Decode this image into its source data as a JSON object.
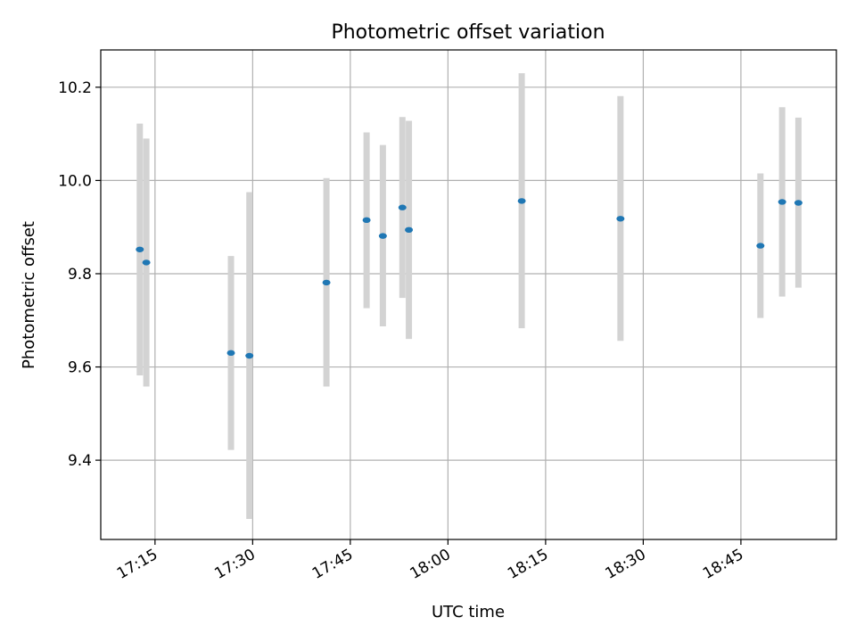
{
  "chart_data": {
    "type": "scatter",
    "title": "Photometric offset variation",
    "xlabel": "UTC time",
    "ylabel": "Photometric offset",
    "grid": true,
    "xlim": [
      "17:06:40",
      "18:59:40"
    ],
    "ylim": [
      9.23,
      10.28
    ],
    "xticks": [
      "17:15",
      "17:30",
      "17:45",
      "18:00",
      "18:15",
      "18:30",
      "18:45"
    ],
    "yticks": [
      9.4,
      9.6,
      9.8,
      10.0,
      10.2
    ],
    "ytick_labels": [
      "9.4",
      "9.6",
      "9.8",
      "10.0",
      "10.2"
    ],
    "marker_color": "#1f77b4",
    "errorbar_color": "#d3d3d3",
    "points": [
      {
        "x": "17:12:40",
        "y": 9.852,
        "yerr_low": 9.582,
        "yerr_high": 10.122
      },
      {
        "x": "17:13:40",
        "y": 9.824,
        "yerr_low": 9.558,
        "yerr_high": 10.09
      },
      {
        "x": "17:26:40",
        "y": 9.63,
        "yerr_low": 9.422,
        "yerr_high": 9.838
      },
      {
        "x": "17:29:30",
        "y": 9.624,
        "yerr_low": 9.274,
        "yerr_high": 9.975
      },
      {
        "x": "17:41:20",
        "y": 9.781,
        "yerr_low": 9.558,
        "yerr_high": 10.005
      },
      {
        "x": "17:47:30",
        "y": 9.915,
        "yerr_low": 9.726,
        "yerr_high": 10.103
      },
      {
        "x": "17:50:00",
        "y": 9.881,
        "yerr_low": 9.687,
        "yerr_high": 10.076
      },
      {
        "x": "17:53:00",
        "y": 9.942,
        "yerr_low": 9.748,
        "yerr_high": 10.136
      },
      {
        "x": "17:54:00",
        "y": 9.894,
        "yerr_low": 9.66,
        "yerr_high": 10.128
      },
      {
        "x": "18:11:20",
        "y": 9.956,
        "yerr_low": 9.683,
        "yerr_high": 10.23
      },
      {
        "x": "18:26:30",
        "y": 9.918,
        "yerr_low": 9.656,
        "yerr_high": 10.181
      },
      {
        "x": "18:48:00",
        "y": 9.86,
        "yerr_low": 9.705,
        "yerr_high": 10.015
      },
      {
        "x": "18:51:20",
        "y": 9.954,
        "yerr_low": 9.751,
        "yerr_high": 10.157
      },
      {
        "x": "18:53:50",
        "y": 9.952,
        "yerr_low": 9.77,
        "yerr_high": 10.135
      }
    ]
  }
}
